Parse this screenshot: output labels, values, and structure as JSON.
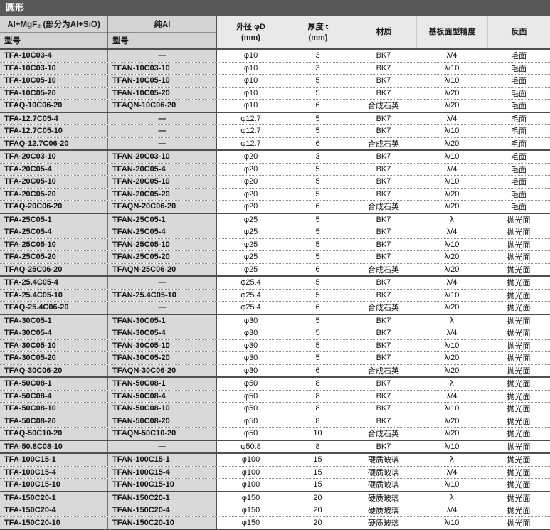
{
  "title": "圆形",
  "colors": {
    "title_bar": "#58595b",
    "header_model_bg": "#d3d3d3",
    "header_data_bg": "#e9e9e9",
    "model_column_bg": "#d9d9d9",
    "group_separator": "#4f4f4f"
  },
  "header": {
    "coating_group": "Al+MgF₂ (部分为Al+SiO)",
    "pure_al_group": "纯Al",
    "model_label": "型号",
    "outer_dia_line1": "外径 φD",
    "outer_dia_line2": "(mm)",
    "thickness_line1": "厚度 t",
    "thickness_line2": "(mm)",
    "material": "材质",
    "surface_accuracy": "基板面型精度",
    "back_face": "反面"
  },
  "rows": [
    {
      "coated_model": "TFA-10C03-4",
      "pure_model": "—",
      "outer_dia": "φ10",
      "thickness": "3",
      "material": "BK7",
      "accuracy": "λ/4",
      "back_face": "毛面",
      "group_start": true
    },
    {
      "coated_model": "TFA-10C03-10",
      "pure_model": "TFAN-10C03-10",
      "outer_dia": "φ10",
      "thickness": "3",
      "material": "BK7",
      "accuracy": "λ/10",
      "back_face": "毛面",
      "group_start": false
    },
    {
      "coated_model": "TFA-10C05-10",
      "pure_model": "TFAN-10C05-10",
      "outer_dia": "φ10",
      "thickness": "5",
      "material": "BK7",
      "accuracy": "λ/10",
      "back_face": "毛面",
      "group_start": false
    },
    {
      "coated_model": "TFA-10C05-20",
      "pure_model": "TFAN-10C05-20",
      "outer_dia": "φ10",
      "thickness": "5",
      "material": "BK7",
      "accuracy": "λ/20",
      "back_face": "毛面",
      "group_start": false
    },
    {
      "coated_model": "TFAQ-10C06-20",
      "pure_model": "TFAQN-10C06-20",
      "outer_dia": "φ10",
      "thickness": "6",
      "material": "合成石英",
      "accuracy": "λ/20",
      "back_face": "毛面",
      "group_start": false
    },
    {
      "coated_model": "TFA-12.7C05-4",
      "pure_model": "—",
      "outer_dia": "φ12.7",
      "thickness": "5",
      "material": "BK7",
      "accuracy": "λ/4",
      "back_face": "毛面",
      "group_start": true
    },
    {
      "coated_model": "TFA-12.7C05-10",
      "pure_model": "—",
      "outer_dia": "φ12.7",
      "thickness": "5",
      "material": "BK7",
      "accuracy": "λ/10",
      "back_face": "毛面",
      "group_start": false
    },
    {
      "coated_model": "TFAQ-12.7C06-20",
      "pure_model": "—",
      "outer_dia": "φ12.7",
      "thickness": "6",
      "material": "合成石英",
      "accuracy": "λ/20",
      "back_face": "毛面",
      "group_start": false
    },
    {
      "coated_model": "TFA-20C03-10",
      "pure_model": "TFAN-20C03-10",
      "outer_dia": "φ20",
      "thickness": "3",
      "material": "BK7",
      "accuracy": "λ/10",
      "back_face": "毛面",
      "group_start": true
    },
    {
      "coated_model": "TFA-20C05-4",
      "pure_model": "TFAN-20C05-4",
      "outer_dia": "φ20",
      "thickness": "5",
      "material": "BK7",
      "accuracy": "λ/4",
      "back_face": "毛面",
      "group_start": false
    },
    {
      "coated_model": "TFA-20C05-10",
      "pure_model": "TFAN-20C05-10",
      "outer_dia": "φ20",
      "thickness": "5",
      "material": "BK7",
      "accuracy": "λ/10",
      "back_face": "毛面",
      "group_start": false
    },
    {
      "coated_model": "TFA-20C05-20",
      "pure_model": "TFAN-20C05-20",
      "outer_dia": "φ20",
      "thickness": "5",
      "material": "BK7",
      "accuracy": "λ/20",
      "back_face": "毛面",
      "group_start": false
    },
    {
      "coated_model": "TFAQ-20C06-20",
      "pure_model": "TFAQN-20C06-20",
      "outer_dia": "φ20",
      "thickness": "6",
      "material": "合成石英",
      "accuracy": "λ/20",
      "back_face": "毛面",
      "group_start": false
    },
    {
      "coated_model": "TFA-25C05-1",
      "pure_model": "TFAN-25C05-1",
      "outer_dia": "φ25",
      "thickness": "5",
      "material": "BK7",
      "accuracy": "λ",
      "back_face": "抛光面",
      "group_start": true
    },
    {
      "coated_model": "TFA-25C05-4",
      "pure_model": "TFAN-25C05-4",
      "outer_dia": "φ25",
      "thickness": "5",
      "material": "BK7",
      "accuracy": "λ/4",
      "back_face": "抛光面",
      "group_start": false
    },
    {
      "coated_model": "TFA-25C05-10",
      "pure_model": "TFAN-25C05-10",
      "outer_dia": "φ25",
      "thickness": "5",
      "material": "BK7",
      "accuracy": "λ/10",
      "back_face": "抛光面",
      "group_start": false
    },
    {
      "coated_model": "TFA-25C05-20",
      "pure_model": "TFAN-25C05-20",
      "outer_dia": "φ25",
      "thickness": "5",
      "material": "BK7",
      "accuracy": "λ/20",
      "back_face": "抛光面",
      "group_start": false
    },
    {
      "coated_model": "TFAQ-25C06-20",
      "pure_model": "TFAQN-25C06-20",
      "outer_dia": "φ25",
      "thickness": "6",
      "material": "合成石英",
      "accuracy": "λ/20",
      "back_face": "抛光面",
      "group_start": false
    },
    {
      "coated_model": "TFA-25.4C05-4",
      "pure_model": "—",
      "outer_dia": "φ25.4",
      "thickness": "5",
      "material": "BK7",
      "accuracy": "λ/4",
      "back_face": "抛光面",
      "group_start": true
    },
    {
      "coated_model": "TFA-25.4C05-10",
      "pure_model": "TFAN-25.4C05-10",
      "outer_dia": "φ25.4",
      "thickness": "5",
      "material": "BK7",
      "accuracy": "λ/10",
      "back_face": "抛光面",
      "group_start": false
    },
    {
      "coated_model": "TFAQ-25.4C06-20",
      "pure_model": "—",
      "outer_dia": "φ25.4",
      "thickness": "6",
      "material": "合成石英",
      "accuracy": "λ/20",
      "back_face": "抛光面",
      "group_start": false
    },
    {
      "coated_model": "TFA-30C05-1",
      "pure_model": "TFAN-30C05-1",
      "outer_dia": "φ30",
      "thickness": "5",
      "material": "BK7",
      "accuracy": "λ",
      "back_face": "抛光面",
      "group_start": true
    },
    {
      "coated_model": "TFA-30C05-4",
      "pure_model": "TFAN-30C05-4",
      "outer_dia": "φ30",
      "thickness": "5",
      "material": "BK7",
      "accuracy": "λ/4",
      "back_face": "抛光面",
      "group_start": false
    },
    {
      "coated_model": "TFA-30C05-10",
      "pure_model": "TFAN-30C05-10",
      "outer_dia": "φ30",
      "thickness": "5",
      "material": "BK7",
      "accuracy": "λ/10",
      "back_face": "抛光面",
      "group_start": false
    },
    {
      "coated_model": "TFA-30C05-20",
      "pure_model": "TFAN-30C05-20",
      "outer_dia": "φ30",
      "thickness": "5",
      "material": "BK7",
      "accuracy": "λ/20",
      "back_face": "抛光面",
      "group_start": false
    },
    {
      "coated_model": "TFAQ-30C06-20",
      "pure_model": "TFAQN-30C06-20",
      "outer_dia": "φ30",
      "thickness": "6",
      "material": "合成石英",
      "accuracy": "λ/20",
      "back_face": "抛光面",
      "group_start": false
    },
    {
      "coated_model": "TFA-50C08-1",
      "pure_model": "TFAN-50C08-1",
      "outer_dia": "φ50",
      "thickness": "8",
      "material": "BK7",
      "accuracy": "λ",
      "back_face": "抛光面",
      "group_start": true
    },
    {
      "coated_model": "TFA-50C08-4",
      "pure_model": "TFAN-50C08-4",
      "outer_dia": "φ50",
      "thickness": "8",
      "material": "BK7",
      "accuracy": "λ/4",
      "back_face": "抛光面",
      "group_start": false
    },
    {
      "coated_model": "TFA-50C08-10",
      "pure_model": "TFAN-50C08-10",
      "outer_dia": "φ50",
      "thickness": "8",
      "material": "BK7",
      "accuracy": "λ/10",
      "back_face": "抛光面",
      "group_start": false
    },
    {
      "coated_model": "TFA-50C08-20",
      "pure_model": "TFAN-50C08-20",
      "outer_dia": "φ50",
      "thickness": "8",
      "material": "BK7",
      "accuracy": "λ/20",
      "back_face": "抛光面",
      "group_start": false
    },
    {
      "coated_model": "TFAQ-50C10-20",
      "pure_model": "TFAQN-50C10-20",
      "outer_dia": "φ50",
      "thickness": "10",
      "material": "合成石英",
      "accuracy": "λ/20",
      "back_face": "抛光面",
      "group_start": false
    },
    {
      "coated_model": "TFA-50.8C08-10",
      "pure_model": "—",
      "outer_dia": "φ50.8",
      "thickness": "8",
      "material": "BK7",
      "accuracy": "λ/10",
      "back_face": "抛光面",
      "group_start": true
    },
    {
      "coated_model": "TFA-100C15-1",
      "pure_model": "TFAN-100C15-1",
      "outer_dia": "φ100",
      "thickness": "15",
      "material": "硬质玻璃",
      "accuracy": "λ",
      "back_face": "抛光面",
      "group_start": true
    },
    {
      "coated_model": "TFA-100C15-4",
      "pure_model": "TFAN-100C15-4",
      "outer_dia": "φ100",
      "thickness": "15",
      "material": "硬质玻璃",
      "accuracy": "λ/4",
      "back_face": "抛光面",
      "group_start": false
    },
    {
      "coated_model": "TFA-100C15-10",
      "pure_model": "TFAN-100C15-10",
      "outer_dia": "φ100",
      "thickness": "15",
      "material": "硬质玻璃",
      "accuracy": "λ/10",
      "back_face": "抛光面",
      "group_start": false
    },
    {
      "coated_model": "TFA-150C20-1",
      "pure_model": "TFAN-150C20-1",
      "outer_dia": "φ150",
      "thickness": "20",
      "material": "硬质玻璃",
      "accuracy": "λ",
      "back_face": "抛光面",
      "group_start": true
    },
    {
      "coated_model": "TFA-150C20-4",
      "pure_model": "TFAN-150C20-4",
      "outer_dia": "φ150",
      "thickness": "20",
      "material": "硬质玻璃",
      "accuracy": "λ/4",
      "back_face": "抛光面",
      "group_start": false
    },
    {
      "coated_model": "TFA-150C20-10",
      "pure_model": "TFAN-150C20-10",
      "outer_dia": "φ150",
      "thickness": "20",
      "material": "硬质玻璃",
      "accuracy": "λ/10",
      "back_face": "抛光面",
      "group_start": false
    }
  ]
}
